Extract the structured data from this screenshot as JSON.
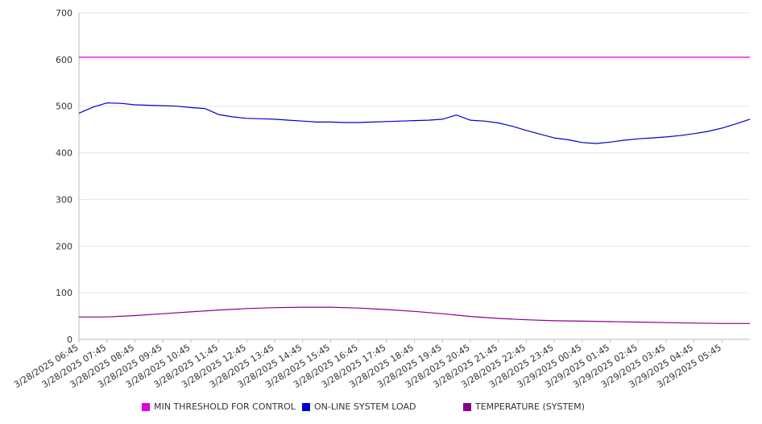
{
  "chart_data": {
    "type": "line",
    "title": "",
    "xlabel": "",
    "ylabel": "",
    "ylim": [
      0,
      700
    ],
    "y_ticks": [
      "0",
      "100",
      "200",
      "300",
      "400",
      "500",
      "600",
      "700"
    ],
    "x_tick_labels": [
      "3/28/2025 06:45",
      "3/28/2025 07:45",
      "3/28/2025 08:45",
      "3/28/2025 09:45",
      "3/28/2025 10:45",
      "3/28/2025 11:45",
      "3/28/2025 12:45",
      "3/28/2025 13:45",
      "3/28/2025 14:45",
      "3/28/2025 15:45",
      "3/28/2025 16:45",
      "3/28/2025 17:45",
      "3/28/2025 18:45",
      "3/28/2025 19:45",
      "3/28/2025 20:45",
      "3/28/2025 21:45",
      "3/28/2025 22:45",
      "3/28/2025 23:45",
      "3/29/2025 00:45",
      "3/29/2025 01:45",
      "3/29/2025 02:45",
      "3/29/2025 03:45",
      "3/29/2025 04:45",
      "3/29/2025 05:45"
    ],
    "x_range": [
      "3/28/2025 06:45",
      "3/29/2025 06:45"
    ],
    "grid": true,
    "legend_position": "bottom",
    "series": [
      {
        "name": "MIN THRESHOLD FOR CONTROL",
        "color": "#dd00dd",
        "x": [
          "3/28/2025 06:45",
          "3/29/2025 06:45"
        ],
        "values": [
          605,
          605
        ]
      },
      {
        "name": "ON-LINE SYSTEM LOAD",
        "color": "#0000cc",
        "x": [
          "3/28/2025 06:45",
          "3/28/2025 07:15",
          "3/28/2025 07:45",
          "3/28/2025 08:15",
          "3/28/2025 08:45",
          "3/28/2025 09:15",
          "3/28/2025 09:45",
          "3/28/2025 10:15",
          "3/28/2025 10:45",
          "3/28/2025 11:15",
          "3/28/2025 11:45",
          "3/28/2025 12:15",
          "3/28/2025 12:45",
          "3/28/2025 13:15",
          "3/28/2025 13:45",
          "3/28/2025 14:15",
          "3/28/2025 14:45",
          "3/28/2025 15:15",
          "3/28/2025 15:45",
          "3/28/2025 16:15",
          "3/28/2025 16:45",
          "3/28/2025 17:15",
          "3/28/2025 17:45",
          "3/28/2025 18:15",
          "3/28/2025 18:45",
          "3/28/2025 19:15",
          "3/28/2025 19:45",
          "3/28/2025 20:15",
          "3/28/2025 20:45",
          "3/28/2025 21:15",
          "3/28/2025 21:45",
          "3/28/2025 22:15",
          "3/28/2025 22:45",
          "3/28/2025 23:15",
          "3/28/2025 23:45",
          "3/29/2025 00:15",
          "3/29/2025 00:45",
          "3/29/2025 01:15",
          "3/29/2025 01:45",
          "3/29/2025 02:15",
          "3/29/2025 02:45",
          "3/29/2025 03:15",
          "3/29/2025 03:45",
          "3/29/2025 04:15",
          "3/29/2025 04:45",
          "3/29/2025 05:15",
          "3/29/2025 05:45",
          "3/29/2025 06:15",
          "3/29/2025 06:45"
        ],
        "values": [
          485,
          498,
          507,
          506,
          503,
          502,
          501,
          500,
          497,
          495,
          482,
          477,
          474,
          473,
          472,
          470,
          468,
          466,
          466,
          465,
          465,
          466,
          467,
          468,
          469,
          470,
          472,
          481,
          470,
          468,
          464,
          457,
          448,
          440,
          432,
          428,
          422,
          420,
          423,
          427,
          430,
          432,
          434,
          437,
          441,
          446,
          453,
          462,
          472
        ]
      },
      {
        "name": "TEMPERATURE (SYSTEM)",
        "color": "#880088",
        "x": [
          "3/28/2025 06:45",
          "3/28/2025 07:45",
          "3/28/2025 08:45",
          "3/28/2025 09:45",
          "3/28/2025 10:45",
          "3/28/2025 11:45",
          "3/28/2025 12:45",
          "3/28/2025 13:45",
          "3/28/2025 14:45",
          "3/28/2025 15:45",
          "3/28/2025 16:45",
          "3/28/2025 17:45",
          "3/28/2025 18:45",
          "3/28/2025 19:45",
          "3/28/2025 20:45",
          "3/28/2025 21:45",
          "3/28/2025 22:45",
          "3/28/2025 23:45",
          "3/29/2025 00:45",
          "3/29/2025 01:45",
          "3/29/2025 02:45",
          "3/29/2025 03:45",
          "3/29/2025 04:45",
          "3/29/2025 05:45",
          "3/29/2025 06:45"
        ],
        "values": [
          48,
          48,
          51,
          55,
          59,
          63,
          66,
          68,
          69,
          69,
          67,
          64,
          60,
          55,
          49,
          45,
          42,
          40,
          39,
          38,
          37,
          36,
          35,
          34,
          34
        ]
      }
    ]
  }
}
